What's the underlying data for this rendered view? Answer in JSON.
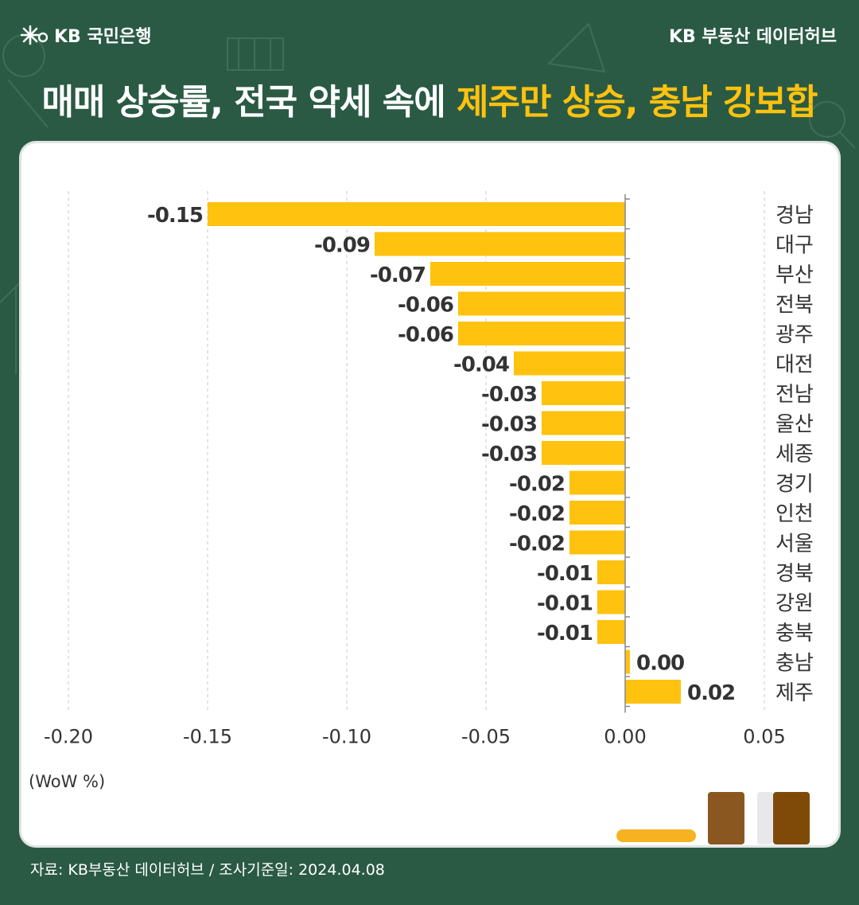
{
  "header": {
    "bank_name": "KB 국민은행",
    "source_brand": "KB 부동산  데이터허브"
  },
  "title": {
    "prefix": "매매 상승률, 전국 약세 속에 ",
    "highlight": "제주만 상승, 충남 강보합"
  },
  "colors": {
    "background": "#2a5a44",
    "bar": "#ffc20e",
    "highlight": "#ffc20e"
  },
  "chart_data": {
    "type": "bar",
    "orientation": "horizontal",
    "categories": [
      "경남",
      "대구",
      "부산",
      "전북",
      "광주",
      "대전",
      "전남",
      "울산",
      "세종",
      "경기",
      "인천",
      "서울",
      "경북",
      "강원",
      "충북",
      "충남",
      "제주"
    ],
    "values": [
      -0.15,
      -0.09,
      -0.07,
      -0.06,
      -0.06,
      -0.04,
      -0.03,
      -0.03,
      -0.03,
      -0.02,
      -0.02,
      -0.02,
      -0.01,
      -0.01,
      -0.01,
      0.0,
      0.02
    ],
    "value_labels": [
      "-0.15",
      "-0.09",
      "-0.07",
      "-0.06",
      "-0.06",
      "-0.04",
      "-0.03",
      "-0.03",
      "-0.03",
      "-0.02",
      "-0.02",
      "-0.02",
      "-0.01",
      "-0.01",
      "-0.01",
      "0.00",
      "0.02"
    ],
    "x_ticks": [
      "-0.20",
      "-0.15",
      "-0.10",
      "-0.05",
      "0.00",
      "0.05"
    ],
    "xlim": [
      -0.2,
      0.05
    ],
    "unit_label": "(WoW %)",
    "grid": "vertical dashed"
  },
  "footer": {
    "source": "자료: KB부동산 데이터허브 / 조사기준일: 2024.04.08"
  }
}
